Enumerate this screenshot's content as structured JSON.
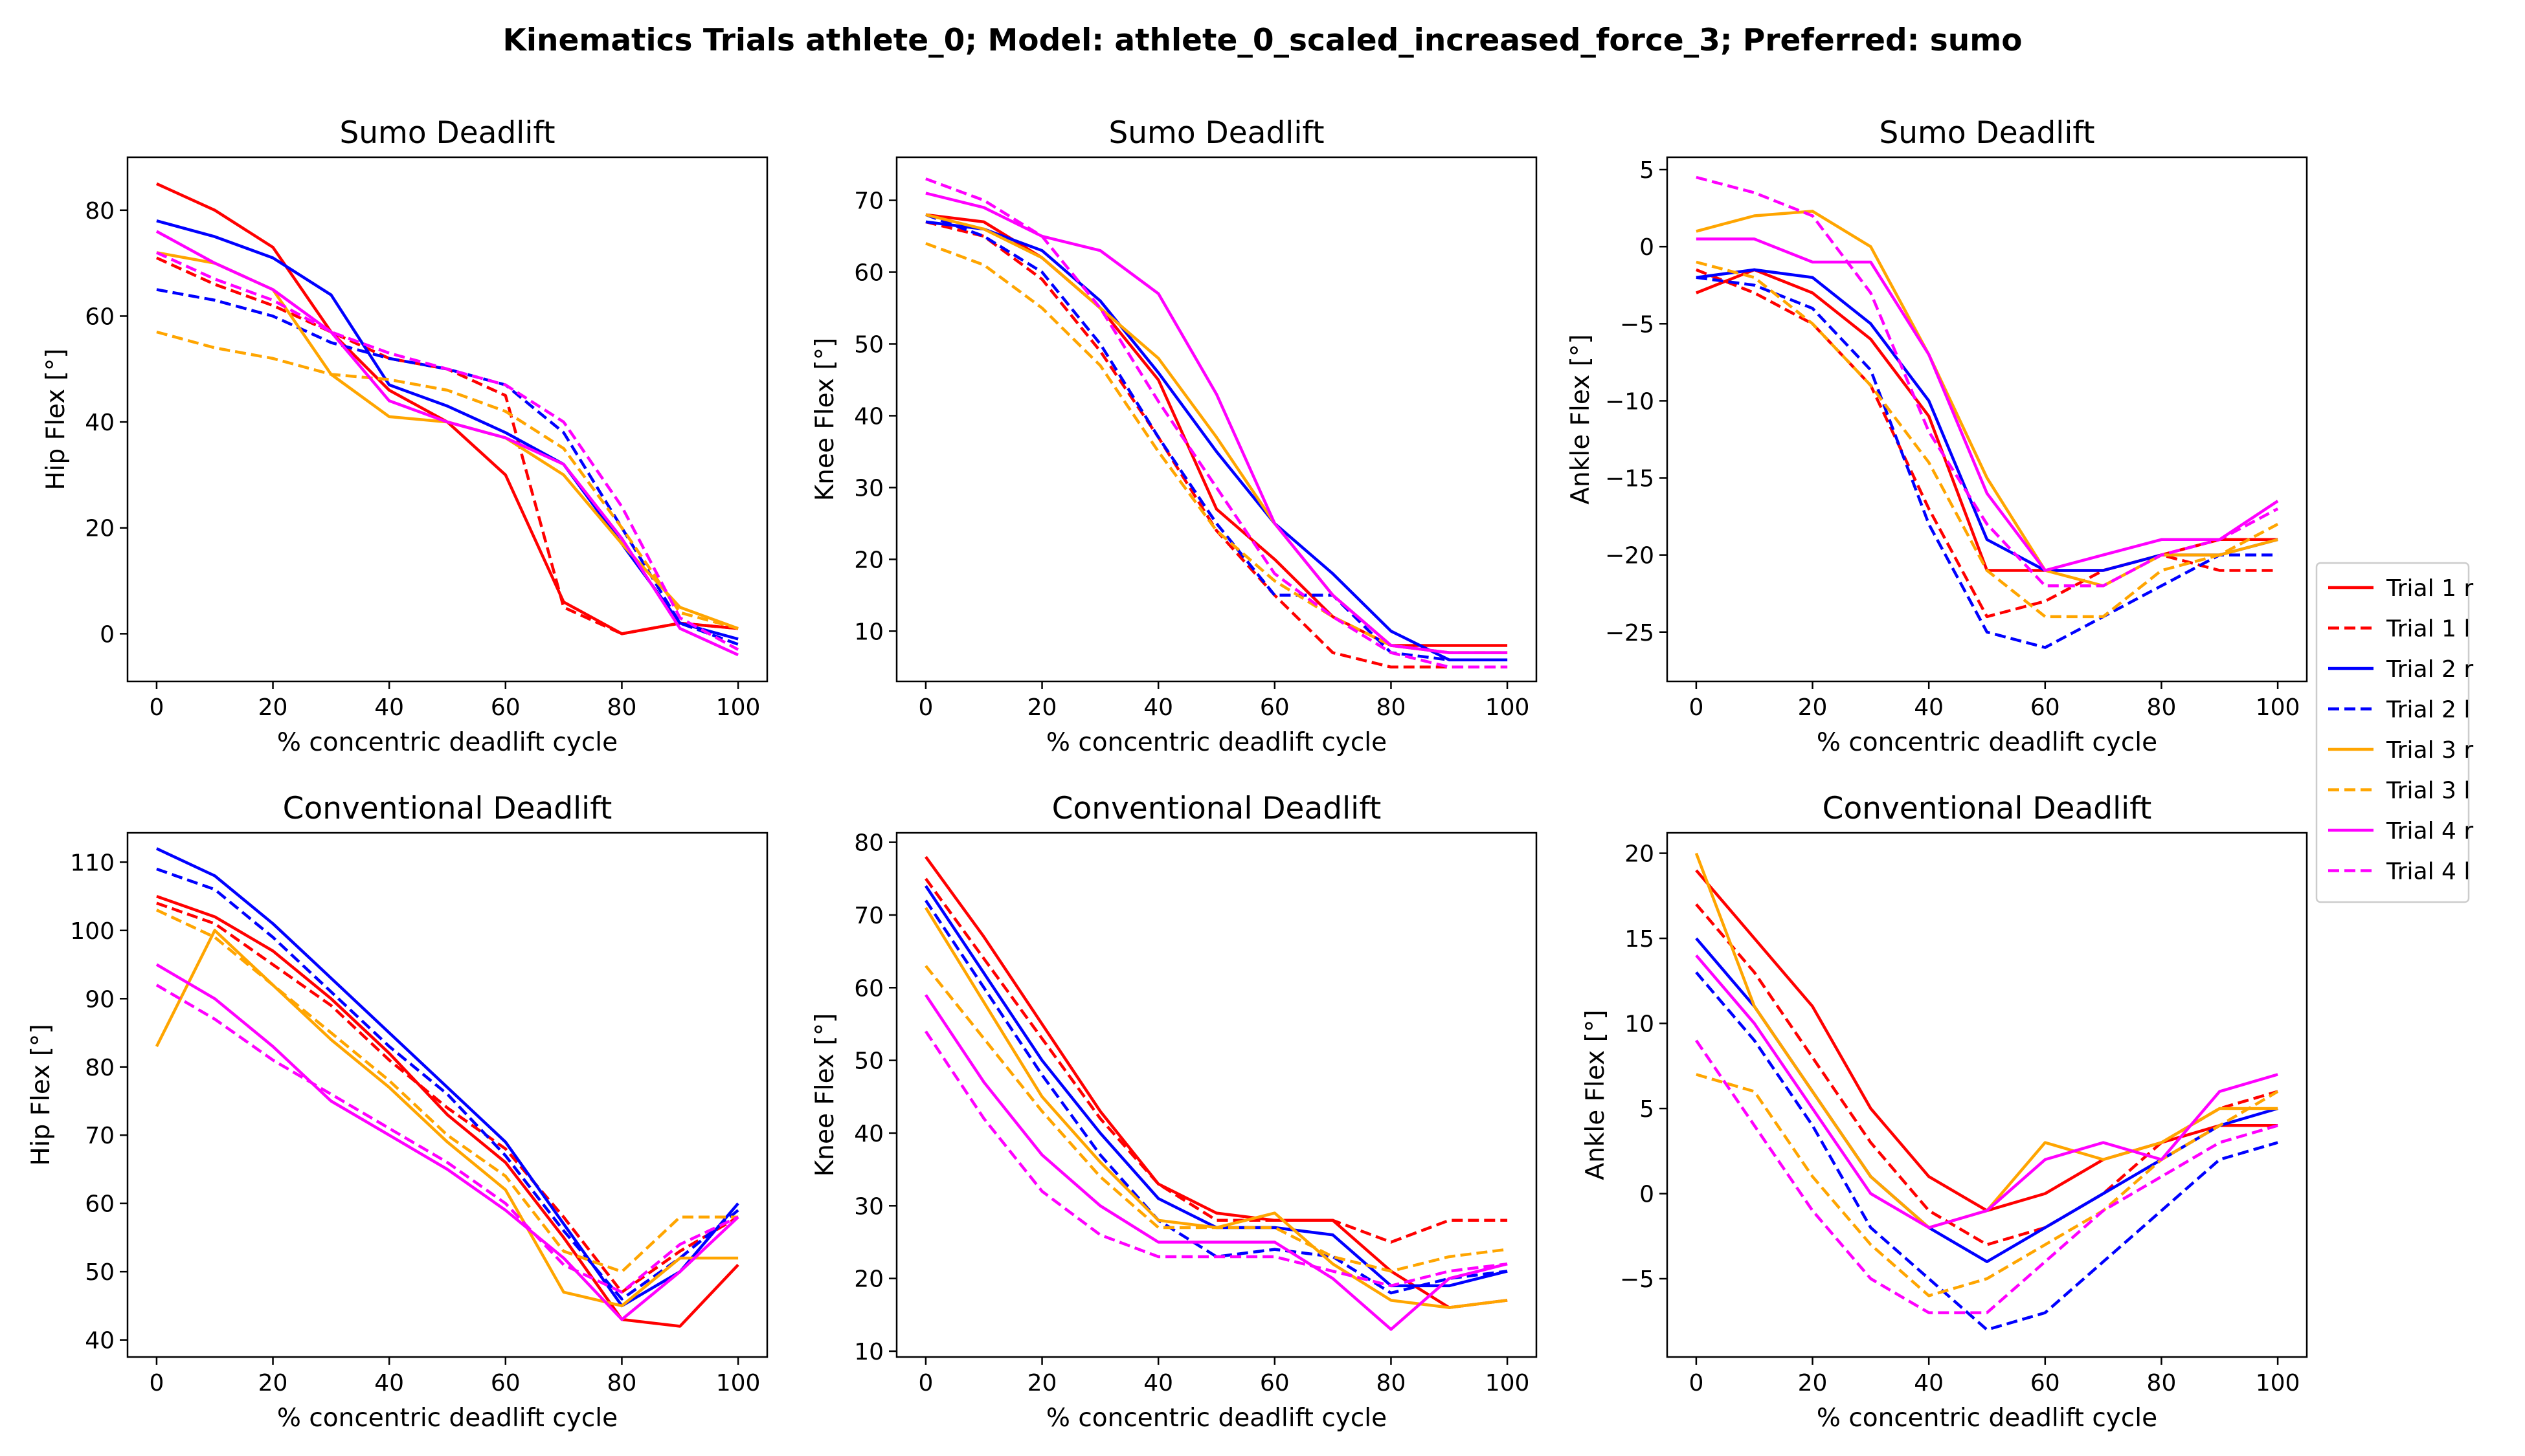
{
  "figure": {
    "title": "Kinematics Trials athlete_0; Model: athlete_0_scaled_increased_force_3; Preferred: sumo"
  },
  "legend": {
    "placement": "right-center",
    "entries": [
      {
        "label": "Trial 1 r",
        "color": "#ff0000",
        "dash": "solid"
      },
      {
        "label": "Trial 1 l",
        "color": "#ff0000",
        "dash": "dashed"
      },
      {
        "label": "Trial 2 r",
        "color": "#0000ff",
        "dash": "solid"
      },
      {
        "label": "Trial 2 l",
        "color": "#0000ff",
        "dash": "dashed"
      },
      {
        "label": "Trial 3 r",
        "color": "#ffa500",
        "dash": "solid"
      },
      {
        "label": "Trial 3 l",
        "color": "#ffa500",
        "dash": "dashed"
      },
      {
        "label": "Trial 4 r",
        "color": "#ff00ff",
        "dash": "solid"
      },
      {
        "label": "Trial 4 l",
        "color": "#ff00ff",
        "dash": "dashed"
      }
    ]
  },
  "chart_data": [
    {
      "type": "line",
      "title": "Sumo Deadlift",
      "xlabel": "% concentric deadlift cycle",
      "ylabel": "Hip Flex [°]",
      "xlim": [
        -5,
        105
      ],
      "ylim": [
        -9,
        90
      ],
      "xticks": [
        0,
        20,
        40,
        60,
        80,
        100
      ],
      "yticks": [
        0,
        20,
        40,
        60,
        80
      ],
      "x": [
        0,
        10,
        20,
        30,
        40,
        50,
        60,
        70,
        80,
        90,
        100
      ],
      "series": [
        {
          "name": "Trial 1 r",
          "values": [
            85,
            80,
            73,
            57,
            46,
            40,
            30,
            6,
            0,
            2,
            1
          ]
        },
        {
          "name": "Trial 1 l",
          "values": [
            71,
            66,
            62,
            57,
            52,
            50,
            45,
            5,
            0,
            2,
            1
          ]
        },
        {
          "name": "Trial 2 r",
          "values": [
            78,
            75,
            71,
            64,
            47,
            43,
            38,
            32,
            17,
            2,
            -1
          ]
        },
        {
          "name": "Trial 2 l",
          "values": [
            65,
            63,
            60,
            55,
            52,
            50,
            47,
            38,
            20,
            2,
            -2
          ]
        },
        {
          "name": "Trial 3 r",
          "values": [
            72,
            70,
            65,
            49,
            41,
            40,
            37,
            30,
            17,
            5,
            1
          ]
        },
        {
          "name": "Trial 3 l",
          "values": [
            57,
            54,
            52,
            49,
            48,
            46,
            42,
            35,
            20,
            4,
            1
          ]
        },
        {
          "name": "Trial 4 r",
          "values": [
            76,
            70,
            65,
            57,
            44,
            40,
            37,
            32,
            18,
            1,
            -4
          ]
        },
        {
          "name": "Trial 4 l",
          "values": [
            72,
            67,
            63,
            57,
            53,
            50,
            47,
            40,
            24,
            3,
            -3
          ]
        }
      ]
    },
    {
      "type": "line",
      "title": "Sumo Deadlift",
      "xlabel": "% concentric deadlift cycle",
      "ylabel": "Knee Flex [°]",
      "xlim": [
        -5,
        105
      ],
      "ylim": [
        3,
        76
      ],
      "xticks": [
        0,
        20,
        40,
        60,
        80,
        100
      ],
      "yticks": [
        10,
        20,
        30,
        40,
        50,
        60,
        70
      ],
      "x": [
        0,
        10,
        20,
        30,
        40,
        50,
        60,
        70,
        80,
        90,
        100
      ],
      "series": [
        {
          "name": "Trial 1 r",
          "values": [
            68,
            67,
            62,
            55,
            45,
            27,
            20,
            12,
            8,
            8,
            8
          ]
        },
        {
          "name": "Trial 1 l",
          "values": [
            67,
            65,
            59,
            49,
            37,
            24,
            15,
            7,
            5,
            5,
            5
          ]
        },
        {
          "name": "Trial 2 r",
          "values": [
            67,
            66,
            63,
            56,
            46,
            35,
            25,
            18,
            10,
            6,
            6
          ]
        },
        {
          "name": "Trial 2 l",
          "values": [
            68,
            65,
            60,
            50,
            37,
            25,
            15,
            15,
            7,
            6,
            6
          ]
        },
        {
          "name": "Trial 3 r",
          "values": [
            68,
            66,
            62,
            55,
            48,
            37,
            25,
            15,
            8,
            7,
            7
          ]
        },
        {
          "name": "Trial 3 l",
          "values": [
            64,
            61,
            55,
            47,
            35,
            24,
            17,
            12,
            8,
            7,
            7
          ]
        },
        {
          "name": "Trial 4 r",
          "values": [
            71,
            69,
            65,
            63,
            57,
            43,
            25,
            15,
            8,
            7,
            7
          ]
        },
        {
          "name": "Trial 4 l",
          "values": [
            73,
            70,
            65,
            55,
            42,
            30,
            18,
            12,
            7,
            5,
            5
          ]
        }
      ]
    },
    {
      "type": "line",
      "title": "Sumo Deadlift",
      "xlabel": "% concentric deadlift cycle",
      "ylabel": "Ankle Flex [°]",
      "xlim": [
        -5,
        105
      ],
      "ylim": [
        -28.2,
        5.8
      ],
      "xticks": [
        0,
        20,
        40,
        60,
        80,
        100
      ],
      "yticks": [
        -25,
        -20,
        -15,
        -10,
        -5,
        0,
        5
      ],
      "x": [
        0,
        10,
        20,
        30,
        40,
        50,
        60,
        70,
        80,
        90,
        100
      ],
      "series": [
        {
          "name": "Trial 1 r",
          "values": [
            -3,
            -1.5,
            -3,
            -6,
            -11,
            -21,
            -21,
            -21,
            -20,
            -19,
            -19
          ]
        },
        {
          "name": "Trial 1 l",
          "values": [
            -1.5,
            -3,
            -5,
            -9,
            -17,
            -24,
            -23,
            -21,
            -20,
            -21,
            -21
          ]
        },
        {
          "name": "Trial 2 r",
          "values": [
            -2,
            -1.5,
            -2,
            -5,
            -10,
            -19,
            -21,
            -21,
            -20,
            -20,
            -19
          ]
        },
        {
          "name": "Trial 2 l",
          "values": [
            -2,
            -2.5,
            -4,
            -8,
            -18,
            -25,
            -26,
            -24,
            -22,
            -20,
            -20
          ]
        },
        {
          "name": "Trial 3 r",
          "values": [
            1,
            2,
            2.3,
            0,
            -7,
            -15,
            -21,
            -22,
            -20,
            -20,
            -19
          ]
        },
        {
          "name": "Trial 3 l",
          "values": [
            -1,
            -2,
            -5,
            -9,
            -14,
            -21,
            -24,
            -24,
            -21,
            -20,
            -18
          ]
        },
        {
          "name": "Trial 4 r",
          "values": [
            0.5,
            0.5,
            -1,
            -1,
            -7,
            -16,
            -21,
            -20,
            -19,
            -19,
            -16.5
          ]
        },
        {
          "name": "Trial 4 l",
          "values": [
            4.5,
            3.5,
            2,
            -3,
            -12,
            -18,
            -22,
            -22,
            -20,
            -19,
            -17
          ]
        }
      ]
    },
    {
      "type": "line",
      "title": "Conventional Deadlift",
      "xlabel": "% concentric deadlift cycle",
      "ylabel": "Hip Flex [°]",
      "xlim": [
        -5,
        105
      ],
      "ylim": [
        37.5,
        114.3
      ],
      "xticks": [
        0,
        20,
        40,
        60,
        80,
        100
      ],
      "yticks": [
        40,
        50,
        60,
        70,
        80,
        90,
        100,
        110
      ],
      "x": [
        0,
        10,
        20,
        30,
        40,
        50,
        60,
        70,
        80,
        90,
        100
      ],
      "series": [
        {
          "name": "Trial 1 r",
          "values": [
            105,
            102,
            97,
            90,
            82,
            73,
            66,
            55,
            43,
            42,
            51
          ]
        },
        {
          "name": "Trial 1 l",
          "values": [
            104,
            101,
            95,
            89,
            81,
            74,
            68,
            58,
            47,
            53,
            58
          ]
        },
        {
          "name": "Trial 2 r",
          "values": [
            112,
            108,
            101,
            93,
            85,
            77,
            69,
            57,
            45,
            50,
            60
          ]
        },
        {
          "name": "Trial 2 l",
          "values": [
            109,
            106,
            99,
            91,
            83,
            76,
            67,
            56,
            46,
            52,
            59
          ]
        },
        {
          "name": "Trial 3 r",
          "values": [
            83,
            100,
            92,
            84,
            77,
            69,
            62,
            47,
            45,
            52,
            52
          ]
        },
        {
          "name": "Trial 3 l",
          "values": [
            103,
            99,
            92,
            85,
            78,
            70,
            64,
            53,
            50,
            58,
            58
          ]
        },
        {
          "name": "Trial 4 r",
          "values": [
            95,
            90,
            83,
            75,
            70,
            65,
            59,
            52,
            43,
            50,
            58
          ]
        },
        {
          "name": "Trial 4 l",
          "values": [
            92,
            87,
            81,
            76,
            71,
            66,
            60,
            51,
            47,
            54,
            58
          ]
        }
      ]
    },
    {
      "type": "line",
      "title": "Conventional Deadlift",
      "xlabel": "% concentric deadlift cycle",
      "ylabel": "Knee Flex [°]",
      "xlim": [
        -5,
        105
      ],
      "ylim": [
        9.2,
        81.3
      ],
      "xticks": [
        0,
        20,
        40,
        60,
        80,
        100
      ],
      "yticks": [
        10,
        20,
        30,
        40,
        50,
        60,
        70,
        80
      ],
      "x": [
        0,
        10,
        20,
        30,
        40,
        50,
        60,
        70,
        80,
        90,
        100
      ],
      "series": [
        {
          "name": "Trial 1 r",
          "values": [
            78,
            67,
            55,
            43,
            33,
            29,
            28,
            28,
            21,
            16,
            17
          ]
        },
        {
          "name": "Trial 1 l",
          "values": [
            75,
            64,
            53,
            42,
            33,
            28,
            28,
            28,
            25,
            28,
            28
          ]
        },
        {
          "name": "Trial 2 r",
          "values": [
            74,
            62,
            50,
            40,
            31,
            27,
            27,
            26,
            19,
            19,
            21
          ]
        },
        {
          "name": "Trial 2 l",
          "values": [
            72,
            60,
            48,
            37,
            28,
            23,
            24,
            23,
            18,
            20,
            21
          ]
        },
        {
          "name": "Trial 3 r",
          "values": [
            71,
            58,
            45,
            36,
            28,
            27,
            29,
            22,
            17,
            16,
            17
          ]
        },
        {
          "name": "Trial 3 l",
          "values": [
            63,
            53,
            43,
            34,
            27,
            27,
            27,
            23,
            21,
            23,
            24
          ]
        },
        {
          "name": "Trial 4 r",
          "values": [
            59,
            47,
            37,
            30,
            25,
            25,
            25,
            20,
            13,
            20,
            22
          ]
        },
        {
          "name": "Trial 4 l",
          "values": [
            54,
            42,
            32,
            26,
            23,
            23,
            23,
            21,
            19,
            21,
            22
          ]
        }
      ]
    },
    {
      "type": "line",
      "title": "Conventional Deadlift",
      "xlabel": "% concentric deadlift cycle",
      "ylabel": "Ankle Flex [°]",
      "xlim": [
        -5,
        105
      ],
      "ylim": [
        -9.6,
        21.2
      ],
      "xticks": [
        0,
        20,
        40,
        60,
        80,
        100
      ],
      "yticks": [
        -5,
        0,
        5,
        10,
        15,
        20
      ],
      "x": [
        0,
        10,
        20,
        30,
        40,
        50,
        60,
        70,
        80,
        90,
        100
      ],
      "series": [
        {
          "name": "Trial 1 r",
          "values": [
            19,
            15,
            11,
            5,
            1,
            -1,
            0,
            2,
            3,
            4,
            4
          ]
        },
        {
          "name": "Trial 1 l",
          "values": [
            17,
            13,
            8,
            3,
            -1,
            -3,
            -2,
            0,
            3,
            5,
            6
          ]
        },
        {
          "name": "Trial 2 r",
          "values": [
            15,
            11,
            6,
            1,
            -2,
            -4,
            -2,
            0,
            2,
            4,
            5
          ]
        },
        {
          "name": "Trial 2 l",
          "values": [
            13,
            9,
            4,
            -2,
            -5,
            -8,
            -7,
            -4,
            -1,
            2,
            3
          ]
        },
        {
          "name": "Trial 3 r",
          "values": [
            20,
            11,
            6,
            1,
            -2,
            -1,
            3,
            2,
            3,
            5,
            5
          ]
        },
        {
          "name": "Trial 3 l",
          "values": [
            7,
            6,
            1,
            -3,
            -6,
            -5,
            -3,
            -1,
            2,
            4,
            6
          ]
        },
        {
          "name": "Trial 4 r",
          "values": [
            14,
            10,
            5,
            0,
            -2,
            -1,
            2,
            3,
            2,
            6,
            7
          ]
        },
        {
          "name": "Trial 4 l",
          "values": [
            9,
            4,
            -1,
            -5,
            -7,
            -7,
            -4,
            -1,
            1,
            3,
            4
          ]
        }
      ]
    }
  ]
}
